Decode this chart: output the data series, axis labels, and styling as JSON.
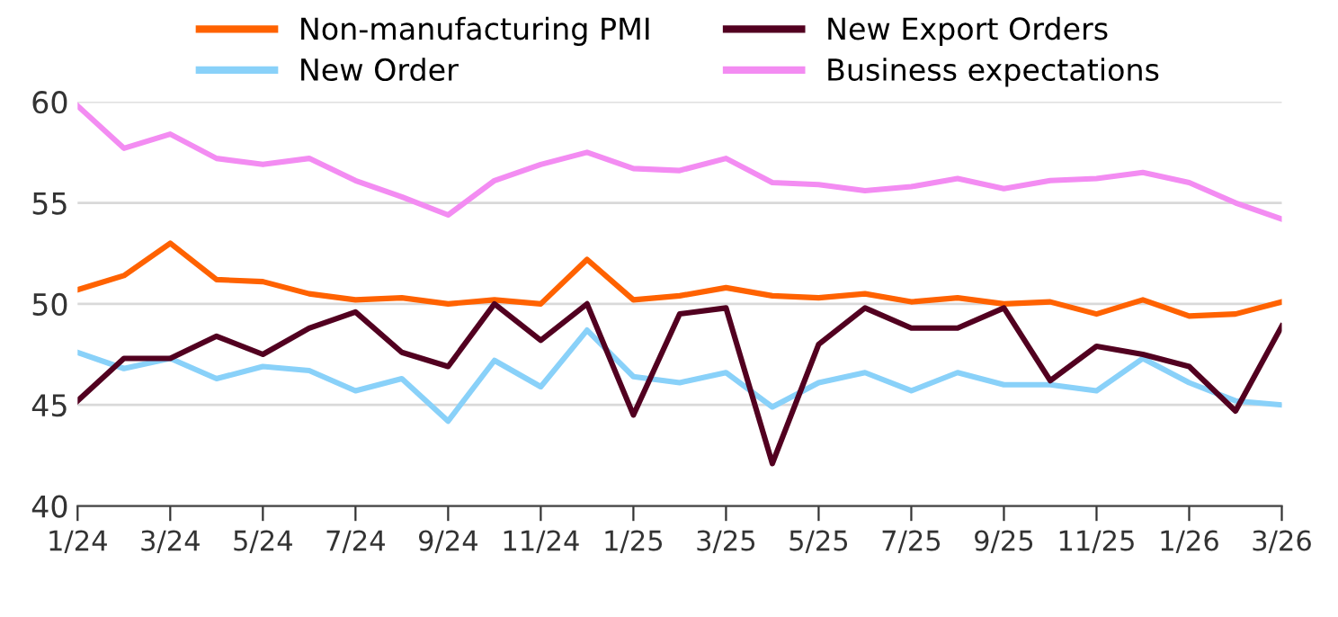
{
  "chart_data": {
    "type": "line",
    "categories": [
      "1/24",
      null,
      "3/24",
      null,
      "5/24",
      null,
      "7/24",
      null,
      "9/24",
      null,
      "11/24",
      null,
      "1/25",
      null,
      "3/25",
      null,
      "5/25",
      null,
      "7/25",
      null,
      "9/25",
      null,
      "11/25",
      null,
      "1/26",
      null,
      "3/26"
    ],
    "series": [
      {
        "name": "Non-manufacturing PMI",
        "color": "#ff6200",
        "values": [
          50.7,
          51.4,
          53.0,
          51.2,
          51.1,
          50.5,
          50.2,
          50.3,
          50.0,
          50.2,
          50.0,
          52.2,
          50.2,
          50.4,
          50.8,
          50.4,
          50.3,
          50.5,
          50.1,
          50.3,
          50.0,
          50.1,
          49.5,
          50.2,
          49.4,
          49.5,
          50.1
        ]
      },
      {
        "name": "New Order",
        "color": "#89d1f9",
        "values": [
          47.6,
          46.8,
          47.3,
          46.3,
          46.9,
          46.7,
          45.7,
          46.3,
          44.2,
          47.2,
          45.9,
          48.7,
          46.4,
          46.1,
          46.6,
          44.9,
          46.1,
          46.6,
          45.7,
          46.6,
          46.0,
          46.0,
          45.7,
          47.3,
          46.1,
          45.2,
          45.0
        ]
      },
      {
        "name": "New Export Orders",
        "color": "#520020",
        "values": [
          45.2,
          47.3,
          47.3,
          48.4,
          47.5,
          48.8,
          49.6,
          47.6,
          46.9,
          50.0,
          48.2,
          50.0,
          44.5,
          49.5,
          49.8,
          42.1,
          48.0,
          49.8,
          48.8,
          48.8,
          49.8,
          46.2,
          47.9,
          47.5,
          46.9,
          44.7,
          48.9
        ]
      },
      {
        "name": "Business expectations",
        "color": "#f38cf2",
        "values": [
          59.8,
          57.7,
          58.4,
          57.2,
          56.9,
          57.2,
          56.1,
          55.3,
          54.4,
          56.1,
          56.9,
          57.5,
          56.7,
          56.6,
          57.2,
          56.0,
          55.9,
          55.6,
          55.8,
          56.2,
          55.7,
          56.1,
          56.2,
          56.5,
          56.0,
          55.0,
          54.2
        ]
      }
    ],
    "ylim": [
      40,
      60
    ],
    "yticks": [
      40,
      45,
      50,
      55,
      60
    ],
    "grid": "y",
    "legend": "top",
    "marker": "none",
    "line_style": "solid"
  }
}
